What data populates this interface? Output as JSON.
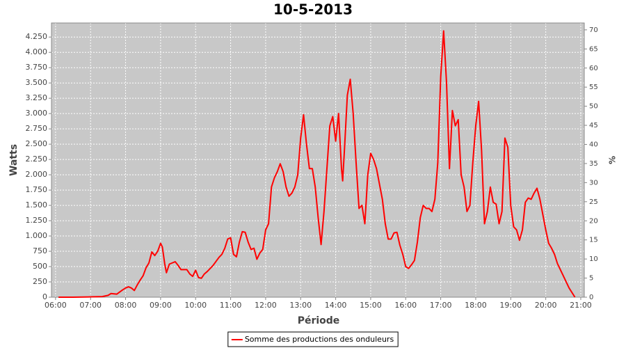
{
  "chart_data": {
    "type": "line",
    "title": "10-5-2013",
    "x_label": "Période",
    "y_label": "Watts",
    "y2_label": "%",
    "x": [
      "06:05",
      "06:30",
      "07:00",
      "07:20",
      "07:30",
      "07:35",
      "07:45",
      "07:55",
      "08:00",
      "08:05",
      "08:10",
      "08:15",
      "08:20",
      "08:25",
      "08:30",
      "08:35",
      "08:40",
      "08:45",
      "08:50",
      "08:55",
      "09:00",
      "09:03",
      "09:07",
      "09:10",
      "09:15",
      "09:20",
      "09:25",
      "09:30",
      "09:35",
      "09:45",
      "09:50",
      "09:55",
      "10:00",
      "10:05",
      "10:10",
      "10:15",
      "10:20",
      "10:30",
      "10:40",
      "10:45",
      "10:50",
      "10:55",
      "11:00",
      "11:05",
      "11:10",
      "11:15",
      "11:20",
      "11:25",
      "11:30",
      "11:35",
      "11:40",
      "11:45",
      "11:50",
      "11:55",
      "12:00",
      "12:05",
      "12:10",
      "12:15",
      "12:20",
      "12:25",
      "12:30",
      "12:35",
      "12:40",
      "12:45",
      "12:50",
      "12:55",
      "13:00",
      "13:05",
      "13:10",
      "13:15",
      "13:20",
      "13:25",
      "13:30",
      "13:35",
      "13:40",
      "13:45",
      "13:50",
      "13:55",
      "14:00",
      "14:05",
      "14:10",
      "14:12",
      "14:15",
      "14:20",
      "14:25",
      "14:30",
      "14:35",
      "14:40",
      "14:45",
      "14:50",
      "14:55",
      "15:00",
      "15:05",
      "15:10",
      "15:15",
      "15:20",
      "15:25",
      "15:30",
      "15:35",
      "15:40",
      "15:45",
      "15:50",
      "15:55",
      "16:00",
      "16:05",
      "16:10",
      "16:15",
      "16:20",
      "16:25",
      "16:30",
      "16:35",
      "16:40",
      "16:45",
      "16:50",
      "16:55",
      "17:00",
      "17:05",
      "17:10",
      "17:15",
      "17:20",
      "17:25",
      "17:30",
      "17:35",
      "17:40",
      "17:45",
      "17:50",
      "17:55",
      "18:00",
      "18:05",
      "18:10",
      "18:15",
      "18:20",
      "18:25",
      "18:30",
      "18:35",
      "18:40",
      "18:45",
      "18:50",
      "18:55",
      "19:00",
      "19:05",
      "19:10",
      "19:15",
      "19:20",
      "19:25",
      "19:30",
      "19:35",
      "19:40",
      "19:45",
      "19:50",
      "19:55",
      "20:00",
      "20:05",
      "20:10",
      "20:15",
      "20:20",
      "20:30",
      "20:40",
      "20:50"
    ],
    "series": [
      {
        "name": "Somme des productions des onduleurs",
        "color": "#ff0000",
        "values": [
          0,
          0,
          5,
          10,
          30,
          60,
          50,
          120,
          150,
          170,
          150,
          110,
          200,
          280,
          350,
          480,
          560,
          740,
          680,
          750,
          880,
          820,
          550,
          400,
          540,
          560,
          580,
          520,
          450,
          450,
          380,
          340,
          440,
          320,
          310,
          380,
          420,
          520,
          650,
          700,
          800,
          950,
          970,
          700,
          660,
          900,
          1070,
          1060,
          900,
          780,
          800,
          620,
          720,
          780,
          1100,
          1200,
          1800,
          1950,
          2050,
          2180,
          2050,
          1800,
          1650,
          1700,
          1800,
          2000,
          2600,
          2980,
          2500,
          2100,
          2100,
          1800,
          1300,
          860,
          1400,
          2100,
          2800,
          2950,
          2550,
          3000,
          2100,
          1900,
          2400,
          3300,
          3560,
          3000,
          2200,
          1450,
          1500,
          1200,
          2000,
          2350,
          2250,
          2100,
          1850,
          1600,
          1200,
          950,
          950,
          1050,
          1060,
          850,
          700,
          500,
          470,
          530,
          600,
          900,
          1300,
          1500,
          1450,
          1450,
          1400,
          1600,
          2200,
          3600,
          4350,
          3500,
          2100,
          3050,
          2800,
          2900,
          2000,
          1800,
          1400,
          1500,
          2200,
          2800,
          3200,
          2400,
          1200,
          1400,
          1800,
          1550,
          1520,
          1200,
          1400,
          2600,
          2450,
          1500,
          1150,
          1100,
          930,
          1100,
          1550,
          1620,
          1600,
          1700,
          1780,
          1600,
          1350,
          1100,
          880,
          800,
          700,
          550,
          350,
          150,
          0
        ]
      }
    ],
    "xlim": [
      "05:53",
      "21:06"
    ],
    "xticks": [
      "06:00",
      "07:00",
      "08:00",
      "09:00",
      "10:00",
      "11:00",
      "12:00",
      "13:00",
      "14:00",
      "15:00",
      "16:00",
      "17:00",
      "18:00",
      "19:00",
      "20:00",
      "21:00"
    ],
    "ylim": [
      0,
      4480
    ],
    "yticks": [
      0,
      250,
      500,
      750,
      {
        "value": 1000,
        "label": "1.000"
      },
      {
        "value": 1250,
        "label": "1.250"
      },
      {
        "value": 1500,
        "label": "1.500"
      },
      {
        "value": 1750,
        "label": "1.750"
      },
      {
        "value": 2000,
        "label": "2.000"
      },
      {
        "value": 2250,
        "label": "2.250"
      },
      {
        "value": 2500,
        "label": "2.500"
      },
      {
        "value": 2750,
        "label": "2.750"
      },
      {
        "value": 3000,
        "label": "3.000"
      },
      {
        "value": 3250,
        "label": "3.250"
      },
      {
        "value": 3500,
        "label": "3.500"
      },
      {
        "value": 3750,
        "label": "3.750"
      },
      {
        "value": 4000,
        "label": "4.000"
      },
      {
        "value": 4250,
        "label": "4.250"
      }
    ],
    "y2lim": [
      0,
      71.8
    ],
    "y2ticks": [
      0,
      5,
      10,
      15,
      20,
      25,
      30,
      35,
      40,
      45,
      50,
      55,
      60,
      65,
      70
    ],
    "grid": true,
    "plot_background": "#c8c8c8",
    "legend_position": "bottom"
  }
}
